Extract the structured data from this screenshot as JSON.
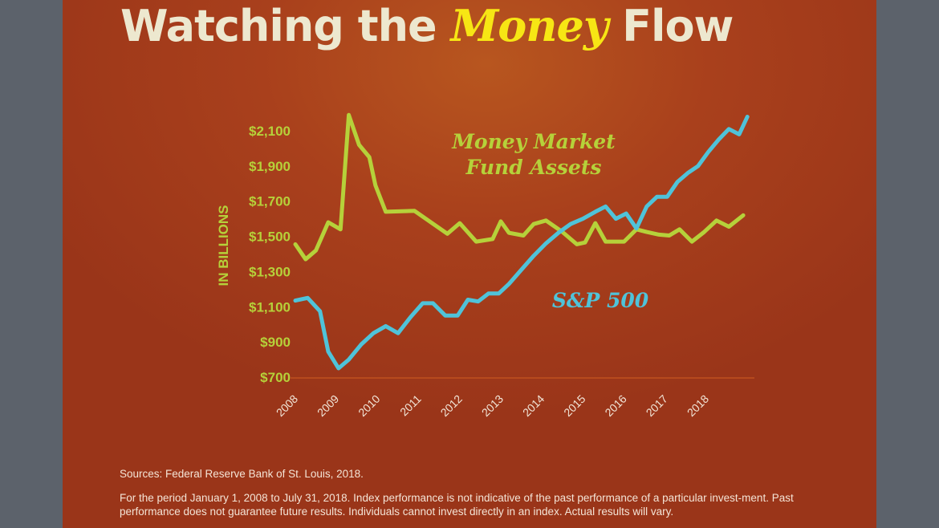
{
  "title": {
    "prefix": "Watching the",
    "emphasis": "Money",
    "suffix": "Flow"
  },
  "sources": "Sources: Federal Reserve Bank of St. Louis, 2018.",
  "disclaimer": "For the period January 1, 2008 to July 31, 2018. Index performance is not indicative of the past performance of a particular invest-ment. Past performance does not guarantee future results. Individuals cannot invest directly in an index. Actual results will vary.",
  "colors": {
    "background": "#a9401c",
    "money_market": "#b6d13a",
    "sp500": "#4fc3d9",
    "title": "#ede8cf",
    "title_emphasis": "#f7e614"
  },
  "chart_data": {
    "type": "line",
    "title": "Watching the Money Flow",
    "ylabel": "IN BILLIONS",
    "xlabel": "",
    "ylim": [
      700,
      2200
    ],
    "xlim": [
      2008,
      2019.2
    ],
    "yticks": [
      "$700",
      "$900",
      "$1,100",
      "$1,300",
      "$1,500",
      "$1,700",
      "$1,900",
      "$2,100"
    ],
    "ytick_values": [
      700,
      900,
      1100,
      1300,
      1500,
      1700,
      1900,
      2100
    ],
    "xticks": [
      "2008",
      "2009",
      "2010",
      "2011",
      "2012",
      "2013",
      "2014",
      "2015",
      "2016",
      "2017",
      "2018"
    ],
    "grid": false,
    "series": [
      {
        "name": "Money Market Fund Assets",
        "label_lines": [
          "Money Market",
          "Fund Assets"
        ],
        "color": "#b6d13a",
        "x": [
          2008.0,
          2008.25,
          2008.5,
          2008.8,
          2009.1,
          2009.3,
          2009.55,
          2009.8,
          2009.95,
          2010.2,
          2010.9,
          2011.7,
          2012.0,
          2012.4,
          2012.8,
          2013.0,
          2013.2,
          2013.55,
          2013.8,
          2014.1,
          2014.5,
          2014.85,
          2015.05,
          2015.3,
          2015.55,
          2016.0,
          2016.3,
          2016.55,
          2016.85,
          2017.1,
          2017.35,
          2017.65,
          2017.95,
          2018.25,
          2018.55,
          2018.9
        ],
        "values": [
          1455,
          1370,
          1420,
          1580,
          1540,
          2190,
          2020,
          1950,
          1790,
          1640,
          1645,
          1515,
          1575,
          1470,
          1485,
          1585,
          1520,
          1505,
          1570,
          1590,
          1525,
          1455,
          1465,
          1575,
          1470,
          1470,
          1540,
          1525,
          1510,
          1505,
          1540,
          1470,
          1525,
          1590,
          1555,
          1620
        ]
      },
      {
        "name": "S&P 500",
        "label_lines": [
          "S&P 500"
        ],
        "color": "#4fc3d9",
        "x": [
          2008.0,
          2008.3,
          2008.6,
          2008.8,
          2009.05,
          2009.3,
          2009.6,
          2009.9,
          2010.2,
          2010.5,
          2010.8,
          2011.1,
          2011.35,
          2011.65,
          2011.95,
          2012.2,
          2012.45,
          2012.7,
          2012.95,
          2013.2,
          2013.5,
          2013.8,
          2014.1,
          2014.4,
          2014.7,
          2015.0,
          2015.3,
          2015.55,
          2015.8,
          2016.05,
          2016.3,
          2016.55,
          2016.8,
          2017.05,
          2017.3,
          2017.55,
          2017.8,
          2018.05,
          2018.3,
          2018.55,
          2018.8,
          2019.0
        ],
        "values": [
          1135,
          1150,
          1075,
          845,
          750,
          800,
          885,
          950,
          990,
          950,
          1040,
          1120,
          1120,
          1050,
          1050,
          1140,
          1130,
          1175,
          1175,
          1230,
          1310,
          1390,
          1460,
          1520,
          1570,
          1600,
          1640,
          1670,
          1600,
          1630,
          1545,
          1670,
          1725,
          1725,
          1810,
          1860,
          1900,
          1980,
          2050,
          2110,
          2080,
          2180
        ]
      }
    ]
  }
}
